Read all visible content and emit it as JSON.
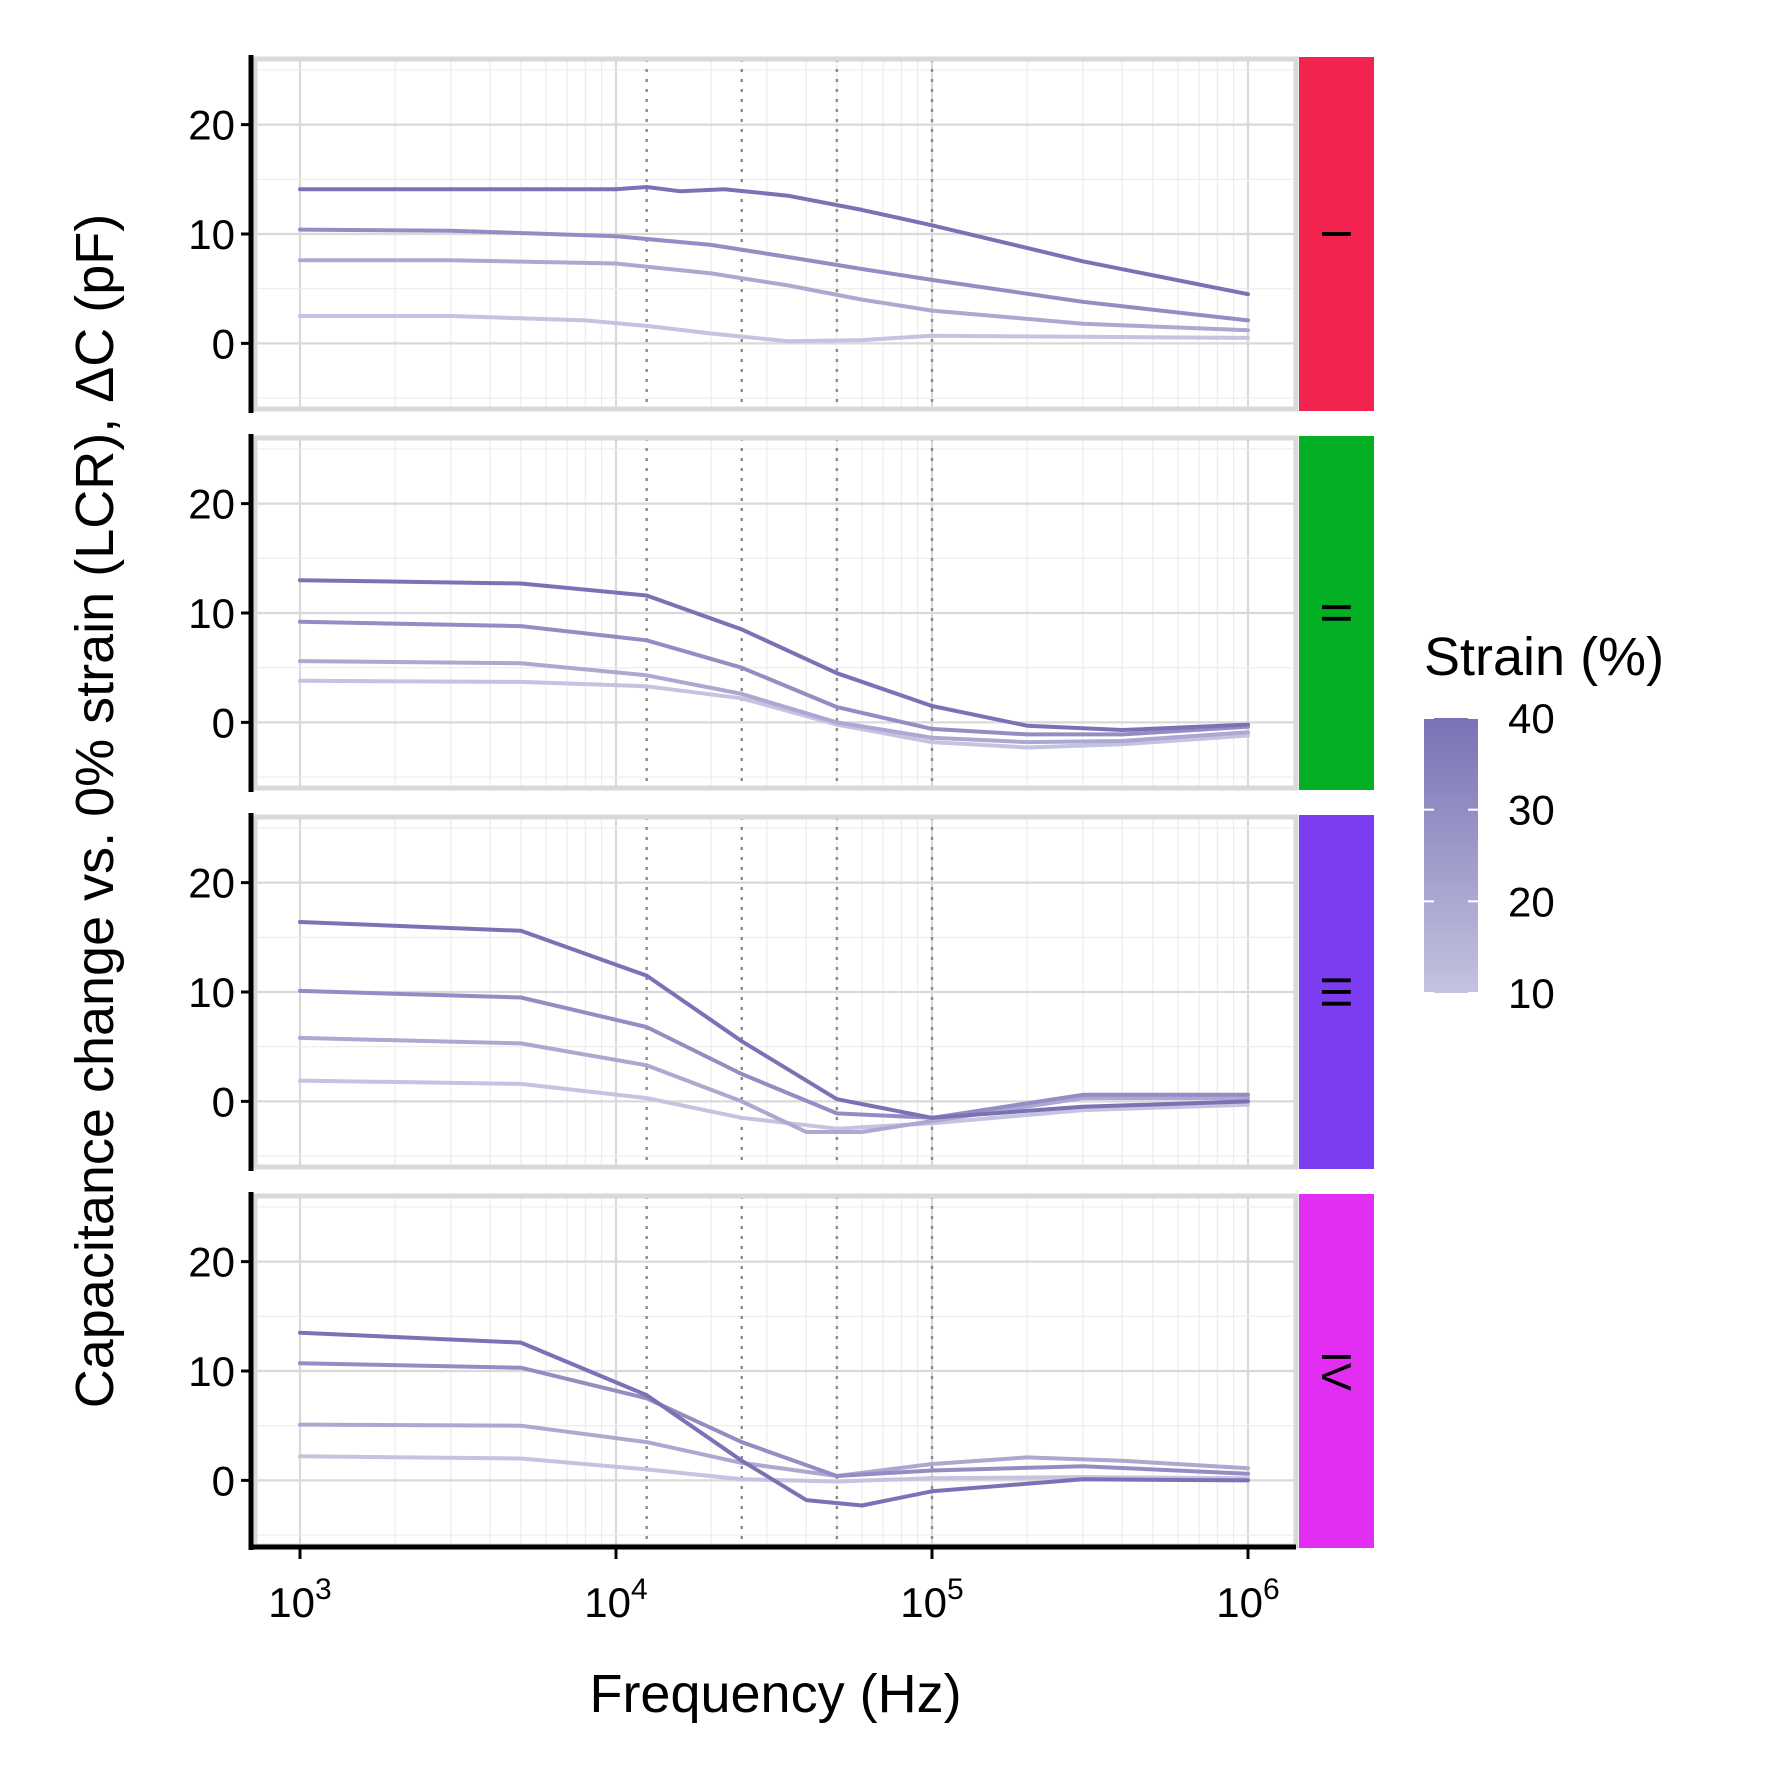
{
  "chart_data": {
    "type": "line",
    "xlabel": "Frequency (Hz)",
    "ylabel": "Capacitance change vs. 0% strain (LCR), ΔC (pF)",
    "x_scale": "log10",
    "xlim": [
      1000,
      1000000
    ],
    "x_ticks": [
      {
        "value": 1000,
        "base": "10",
        "exp": "3"
      },
      {
        "value": 10000,
        "base": "10",
        "exp": "4"
      },
      {
        "value": 100000,
        "base": "10",
        "exp": "5"
      },
      {
        "value": 1000000,
        "base": "10",
        "exp": "6"
      }
    ],
    "ylim": [
      -6,
      26
    ],
    "y_ticks": [
      "0",
      "10",
      "20"
    ],
    "y_tick_values": [
      0,
      10,
      20
    ],
    "reference_lines_x": [
      12500,
      25000,
      50000,
      100000
    ],
    "grid": true,
    "legend": {
      "title": "Strain (%)",
      "position": "right",
      "type": "colorbar",
      "ticks": [
        "40",
        "30",
        "20",
        "10"
      ],
      "tick_values": [
        40,
        30,
        20,
        10
      ],
      "range": [
        10,
        40
      ],
      "color_low": "#c4c3e0",
      "color_high": "#7a72b5"
    },
    "panels": [
      {
        "label": "I",
        "strip_color": "#f2234f",
        "series": [
          {
            "strain": 10,
            "points": [
              [
                1000,
                2.5
              ],
              [
                3000,
                2.5
              ],
              [
                8000,
                2.1
              ],
              [
                12500,
                1.6
              ],
              [
                20000,
                0.9
              ],
              [
                35000,
                0.2
              ],
              [
                60000,
                0.3
              ],
              [
                100000,
                0.7
              ],
              [
                300000,
                0.6
              ],
              [
                1000000,
                0.5
              ]
            ]
          },
          {
            "strain": 20,
            "points": [
              [
                1000,
                7.6
              ],
              [
                3000,
                7.6
              ],
              [
                10000,
                7.3
              ],
              [
                20000,
                6.4
              ],
              [
                35000,
                5.3
              ],
              [
                60000,
                4.0
              ],
              [
                100000,
                3.0
              ],
              [
                300000,
                1.8
              ],
              [
                1000000,
                1.2
              ]
            ]
          },
          {
            "strain": 30,
            "points": [
              [
                1000,
                10.4
              ],
              [
                3000,
                10.3
              ],
              [
                10000,
                9.8
              ],
              [
                20000,
                9.0
              ],
              [
                35000,
                7.9
              ],
              [
                60000,
                6.8
              ],
              [
                100000,
                5.8
              ],
              [
                300000,
                3.8
              ],
              [
                1000000,
                2.1
              ]
            ]
          },
          {
            "strain": 40,
            "points": [
              [
                1000,
                14.1
              ],
              [
                10000,
                14.1
              ],
              [
                12500,
                14.3
              ],
              [
                16000,
                13.9
              ],
              [
                22000,
                14.1
              ],
              [
                35000,
                13.5
              ],
              [
                60000,
                12.2
              ],
              [
                100000,
                10.8
              ],
              [
                300000,
                7.5
              ],
              [
                1000000,
                4.5
              ]
            ]
          }
        ]
      },
      {
        "label": "II",
        "strip_color": "#03b024",
        "series": [
          {
            "strain": 10,
            "points": [
              [
                1000,
                3.8
              ],
              [
                5000,
                3.7
              ],
              [
                12500,
                3.3
              ],
              [
                25000,
                2.2
              ],
              [
                50000,
                -0.2
              ],
              [
                100000,
                -1.8
              ],
              [
                200000,
                -2.3
              ],
              [
                400000,
                -2.0
              ],
              [
                1000000,
                -1.2
              ]
            ]
          },
          {
            "strain": 20,
            "points": [
              [
                1000,
                5.6
              ],
              [
                5000,
                5.4
              ],
              [
                12500,
                4.3
              ],
              [
                25000,
                2.6
              ],
              [
                50000,
                0.0
              ],
              [
                100000,
                -1.4
              ],
              [
                200000,
                -1.8
              ],
              [
                400000,
                -1.7
              ],
              [
                1000000,
                -0.9
              ]
            ]
          },
          {
            "strain": 30,
            "points": [
              [
                1000,
                9.2
              ],
              [
                5000,
                8.8
              ],
              [
                12500,
                7.5
              ],
              [
                25000,
                5.0
              ],
              [
                50000,
                1.4
              ],
              [
                100000,
                -0.6
              ],
              [
                200000,
                -1.1
              ],
              [
                400000,
                -1.1
              ],
              [
                1000000,
                -0.4
              ]
            ]
          },
          {
            "strain": 40,
            "points": [
              [
                1000,
                13.0
              ],
              [
                5000,
                12.7
              ],
              [
                12500,
                11.6
              ],
              [
                25000,
                8.5
              ],
              [
                50000,
                4.5
              ],
              [
                100000,
                1.5
              ],
              [
                200000,
                -0.3
              ],
              [
                400000,
                -0.7
              ],
              [
                1000000,
                -0.2
              ]
            ]
          }
        ]
      },
      {
        "label": "III",
        "strip_color": "#7e3cf0",
        "series": [
          {
            "strain": 10,
            "points": [
              [
                1000,
                1.9
              ],
              [
                5000,
                1.6
              ],
              [
                12500,
                0.3
              ],
              [
                25000,
                -1.5
              ],
              [
                50000,
                -2.5
              ],
              [
                100000,
                -2.0
              ],
              [
                300000,
                -0.8
              ],
              [
                1000000,
                -0.3
              ]
            ]
          },
          {
            "strain": 20,
            "points": [
              [
                1000,
                5.8
              ],
              [
                5000,
                5.3
              ],
              [
                12500,
                3.3
              ],
              [
                25000,
                0.0
              ],
              [
                40000,
                -2.8
              ],
              [
                60000,
                -2.8
              ],
              [
                100000,
                -1.8
              ],
              [
                300000,
                0.3
              ],
              [
                1000000,
                0.3
              ]
            ]
          },
          {
            "strain": 30,
            "points": [
              [
                1000,
                10.1
              ],
              [
                5000,
                9.5
              ],
              [
                12500,
                6.8
              ],
              [
                25000,
                2.5
              ],
              [
                50000,
                -1.1
              ],
              [
                100000,
                -1.5
              ],
              [
                300000,
                0.6
              ],
              [
                1000000,
                0.6
              ]
            ]
          },
          {
            "strain": 40,
            "points": [
              [
                1000,
                16.4
              ],
              [
                5000,
                15.6
              ],
              [
                12500,
                11.5
              ],
              [
                25000,
                5.5
              ],
              [
                50000,
                0.2
              ],
              [
                100000,
                -1.5
              ],
              [
                300000,
                -0.5
              ],
              [
                1000000,
                0.0
              ]
            ]
          }
        ]
      },
      {
        "label": "IV",
        "strip_color": "#e22ef2",
        "series": [
          {
            "strain": 10,
            "points": [
              [
                1000,
                2.2
              ],
              [
                5000,
                2.0
              ],
              [
                12500,
                1.0
              ],
              [
                25000,
                0.1
              ],
              [
                50000,
                -0.1
              ],
              [
                100000,
                0.2
              ],
              [
                300000,
                0.3
              ],
              [
                1000000,
                0.2
              ]
            ]
          },
          {
            "strain": 20,
            "points": [
              [
                1000,
                5.1
              ],
              [
                5000,
                5.0
              ],
              [
                12500,
                3.5
              ],
              [
                25000,
                1.6
              ],
              [
                50000,
                0.4
              ],
              [
                100000,
                1.5
              ],
              [
                200000,
                2.1
              ],
              [
                400000,
                1.8
              ],
              [
                1000000,
                1.1
              ]
            ]
          },
          {
            "strain": 30,
            "points": [
              [
                1000,
                10.7
              ],
              [
                5000,
                10.3
              ],
              [
                12500,
                7.5
              ],
              [
                25000,
                3.5
              ],
              [
                50000,
                0.4
              ],
              [
                100000,
                0.9
              ],
              [
                300000,
                1.3
              ],
              [
                1000000,
                0.6
              ]
            ]
          },
          {
            "strain": 40,
            "points": [
              [
                1000,
                13.5
              ],
              [
                5000,
                12.6
              ],
              [
                12500,
                7.8
              ],
              [
                25000,
                1.8
              ],
              [
                40000,
                -1.8
              ],
              [
                60000,
                -2.3
              ],
              [
                100000,
                -1.0
              ],
              [
                300000,
                0.1
              ],
              [
                1000000,
                0.0
              ]
            ]
          }
        ]
      }
    ]
  }
}
